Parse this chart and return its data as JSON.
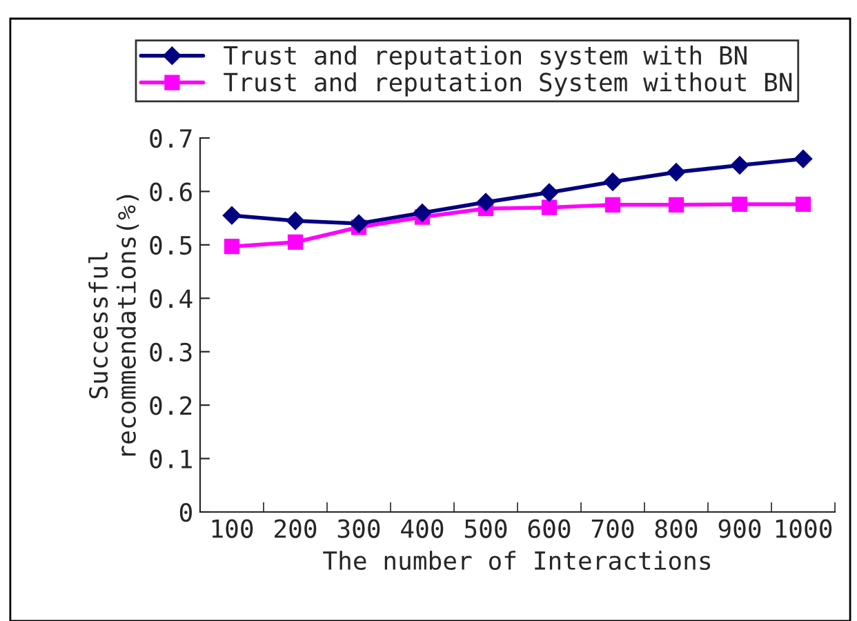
{
  "chart_data": {
    "type": "line",
    "xlabel": "The number of Interactions",
    "ylabel": "Successful\nrecommendations(%)",
    "categories": [
      "100",
      "200",
      "300",
      "400",
      "500",
      "600",
      "700",
      "800",
      "900",
      "1000"
    ],
    "series": [
      {
        "name": "Trust and reputation system with BN",
        "color": "#000080",
        "marker": "diamond",
        "values": [
          0.555,
          0.545,
          0.54,
          0.56,
          0.58,
          0.598,
          0.618,
          0.636,
          0.649,
          0.661
        ]
      },
      {
        "name": "Trust and reputation System without BN",
        "color": "#ff00ff",
        "marker": "square",
        "values": [
          0.497,
          0.505,
          0.533,
          0.552,
          0.568,
          0.57,
          0.575,
          0.575,
          0.576,
          0.576
        ]
      }
    ],
    "ylim": [
      0,
      0.7
    ],
    "yticks": [
      0,
      0.1,
      0.2,
      0.3,
      0.4,
      0.5,
      0.6,
      0.7
    ],
    "grid": false,
    "legend": "top",
    "line_style": "solid"
  }
}
